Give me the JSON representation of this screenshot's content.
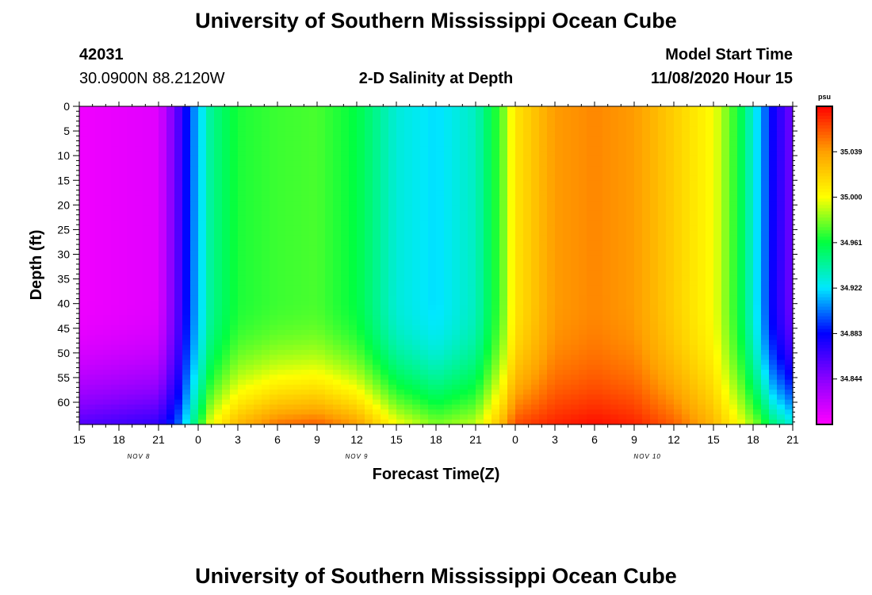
{
  "page": {
    "title": "University of Southern Mississippi Ocean Cube",
    "footer_title": "University of Southern Mississippi Ocean Cube",
    "station_id": "42031",
    "station_coords": "30.0900N 88.2120W",
    "plot_title": "2-D Salinity at Depth",
    "model_label": "Model Start Time",
    "model_time": "11/08/2020 Hour 15"
  },
  "chart_data": {
    "type": "heatmap",
    "title": "2-D Salinity at Depth",
    "xlabel": "Forecast Time(Z)",
    "ylabel": "Depth (ft)",
    "x_tick_labels": [
      "15",
      "18",
      "21",
      "0",
      "3",
      "6",
      "9",
      "12",
      "15",
      "18",
      "21",
      "0",
      "3",
      "6",
      "9",
      "12",
      "15",
      "18",
      "21"
    ],
    "x_tick_hours": [
      0,
      3,
      6,
      9,
      12,
      15,
      18,
      21,
      24,
      27,
      30,
      33,
      36,
      39,
      42,
      45,
      48,
      51,
      54
    ],
    "day_labels": [
      {
        "label": "NOV 8",
        "hour": 4.5
      },
      {
        "label": "NOV 9",
        "hour": 21
      },
      {
        "label": "NOV 10",
        "hour": 43
      }
    ],
    "xlim": [
      0,
      54
    ],
    "y_ticks": [
      0,
      5,
      10,
      15,
      20,
      25,
      30,
      35,
      40,
      45,
      50,
      55,
      60
    ],
    "ylim": [
      0,
      64.5
    ],
    "y_inverted": true,
    "colorbar": {
      "unit": "psu",
      "labels": [
        34.844,
        34.883,
        34.922,
        34.961,
        35.0,
        35.039
      ],
      "range": [
        34.805,
        35.078
      ],
      "colors": [
        "#ff00ff",
        "#8a00ff",
        "#0000ff",
        "#00e8ff",
        "#00ff40",
        "#ffff00",
        "#ffa000",
        "#ff0000"
      ]
    },
    "profiles": {
      "hours": [
        0,
        6,
        7.5,
        8.5,
        10,
        12,
        15,
        18,
        21,
        24,
        27,
        30,
        32,
        33,
        36,
        39,
        42,
        45,
        48,
        50,
        51.5,
        52.5,
        54
      ],
      "surface": [
        34.81,
        34.815,
        34.86,
        34.9,
        34.945,
        34.965,
        34.97,
        34.972,
        34.96,
        34.93,
        34.92,
        34.935,
        34.975,
        35.01,
        35.04,
        35.045,
        35.04,
        35.02,
        35.0,
        34.96,
        34.915,
        34.88,
        34.85
      ],
      "bottom": [
        34.86,
        34.87,
        34.9,
        34.94,
        35.0,
        35.03,
        35.05,
        35.055,
        35.04,
        35.0,
        34.98,
        34.99,
        35.03,
        35.06,
        35.07,
        35.075,
        35.07,
        35.055,
        35.03,
        35.0,
        34.975,
        34.95,
        34.93
      ]
    }
  }
}
